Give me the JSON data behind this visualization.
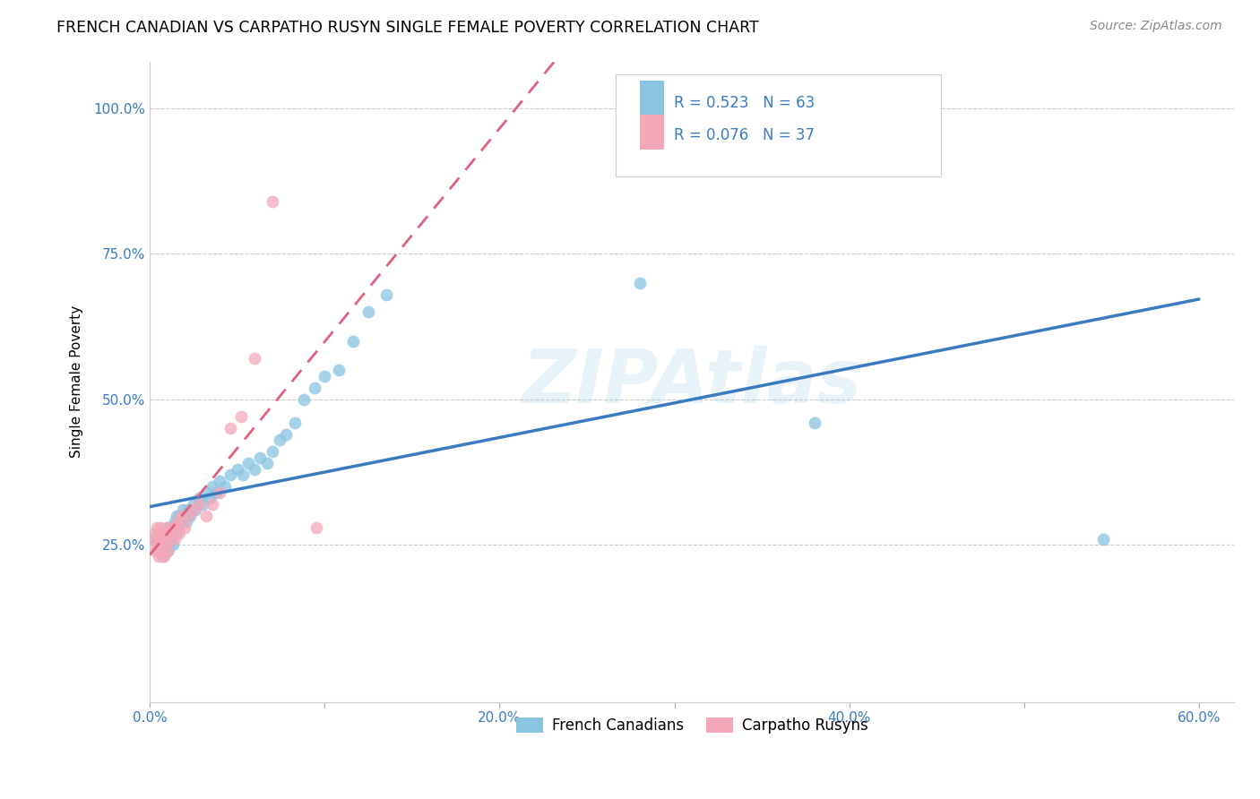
{
  "title": "FRENCH CANADIAN VS CARPATHO RUSYN SINGLE FEMALE POVERTY CORRELATION CHART",
  "source": "Source: ZipAtlas.com",
  "ylabel": "Single Female Poverty",
  "xlim": [
    0.0,
    0.62
  ],
  "ylim": [
    -0.02,
    1.08
  ],
  "xtick_vals": [
    0.0,
    0.1,
    0.2,
    0.3,
    0.4,
    0.5,
    0.6
  ],
  "xtick_labels": [
    "0.0%",
    "",
    "20.0%",
    "",
    "40.0%",
    "",
    "60.0%"
  ],
  "ytick_vals": [
    0.25,
    0.5,
    0.75,
    1.0
  ],
  "ytick_labels": [
    "25.0%",
    "50.0%",
    "75.0%",
    "100.0%"
  ],
  "french_R": 0.523,
  "french_N": 63,
  "rusyn_R": 0.076,
  "rusyn_N": 37,
  "french_color": "#89c4e1",
  "rusyn_color": "#f4a7b9",
  "french_line_color": "#3a7abf",
  "rusyn_line_color": "#e0607e",
  "watermark": "ZIPAtlas",
  "fc_x": [
    0.003,
    0.004,
    0.005,
    0.005,
    0.006,
    0.006,
    0.007,
    0.007,
    0.008,
    0.008,
    0.009,
    0.009,
    0.01,
    0.01,
    0.01,
    0.011,
    0.011,
    0.012,
    0.012,
    0.013,
    0.013,
    0.014,
    0.015,
    0.015,
    0.016,
    0.017,
    0.018,
    0.019,
    0.02,
    0.021,
    0.022,
    0.023,
    0.025,
    0.026,
    0.028,
    0.03,
    0.032,
    0.034,
    0.036,
    0.038,
    0.04,
    0.043,
    0.046,
    0.05,
    0.053,
    0.056,
    0.06,
    0.063,
    0.067,
    0.07,
    0.074,
    0.078,
    0.083,
    0.088,
    0.094,
    0.1,
    0.108,
    0.116,
    0.125,
    0.135,
    0.28,
    0.38,
    0.545
  ],
  "fc_y": [
    0.26,
    0.25,
    0.24,
    0.27,
    0.25,
    0.26,
    0.23,
    0.26,
    0.24,
    0.27,
    0.25,
    0.27,
    0.24,
    0.26,
    0.28,
    0.25,
    0.27,
    0.26,
    0.28,
    0.25,
    0.27,
    0.29,
    0.27,
    0.3,
    0.28,
    0.3,
    0.29,
    0.31,
    0.3,
    0.29,
    0.31,
    0.3,
    0.32,
    0.31,
    0.33,
    0.32,
    0.34,
    0.33,
    0.35,
    0.34,
    0.36,
    0.35,
    0.37,
    0.38,
    0.37,
    0.39,
    0.38,
    0.4,
    0.39,
    0.41,
    0.43,
    0.44,
    0.46,
    0.5,
    0.52,
    0.54,
    0.55,
    0.6,
    0.65,
    0.68,
    0.7,
    0.46,
    0.26
  ],
  "cr_x": [
    0.002,
    0.003,
    0.003,
    0.004,
    0.004,
    0.005,
    0.005,
    0.006,
    0.006,
    0.007,
    0.007,
    0.008,
    0.008,
    0.009,
    0.009,
    0.01,
    0.01,
    0.011,
    0.012,
    0.013,
    0.014,
    0.015,
    0.016,
    0.017,
    0.018,
    0.02,
    0.022,
    0.025,
    0.028,
    0.032,
    0.036,
    0.04,
    0.046,
    0.052,
    0.06,
    0.07,
    0.095
  ],
  "cr_y": [
    0.26,
    0.24,
    0.27,
    0.25,
    0.28,
    0.23,
    0.26,
    0.25,
    0.28,
    0.24,
    0.27,
    0.23,
    0.26,
    0.25,
    0.27,
    0.24,
    0.28,
    0.26,
    0.27,
    0.28,
    0.26,
    0.28,
    0.29,
    0.27,
    0.3,
    0.28,
    0.3,
    0.31,
    0.32,
    0.3,
    0.32,
    0.34,
    0.45,
    0.47,
    0.57,
    0.84,
    0.28
  ],
  "legend_fc_label": "French Canadians",
  "legend_cr_label": "Carpatho Rusyns"
}
